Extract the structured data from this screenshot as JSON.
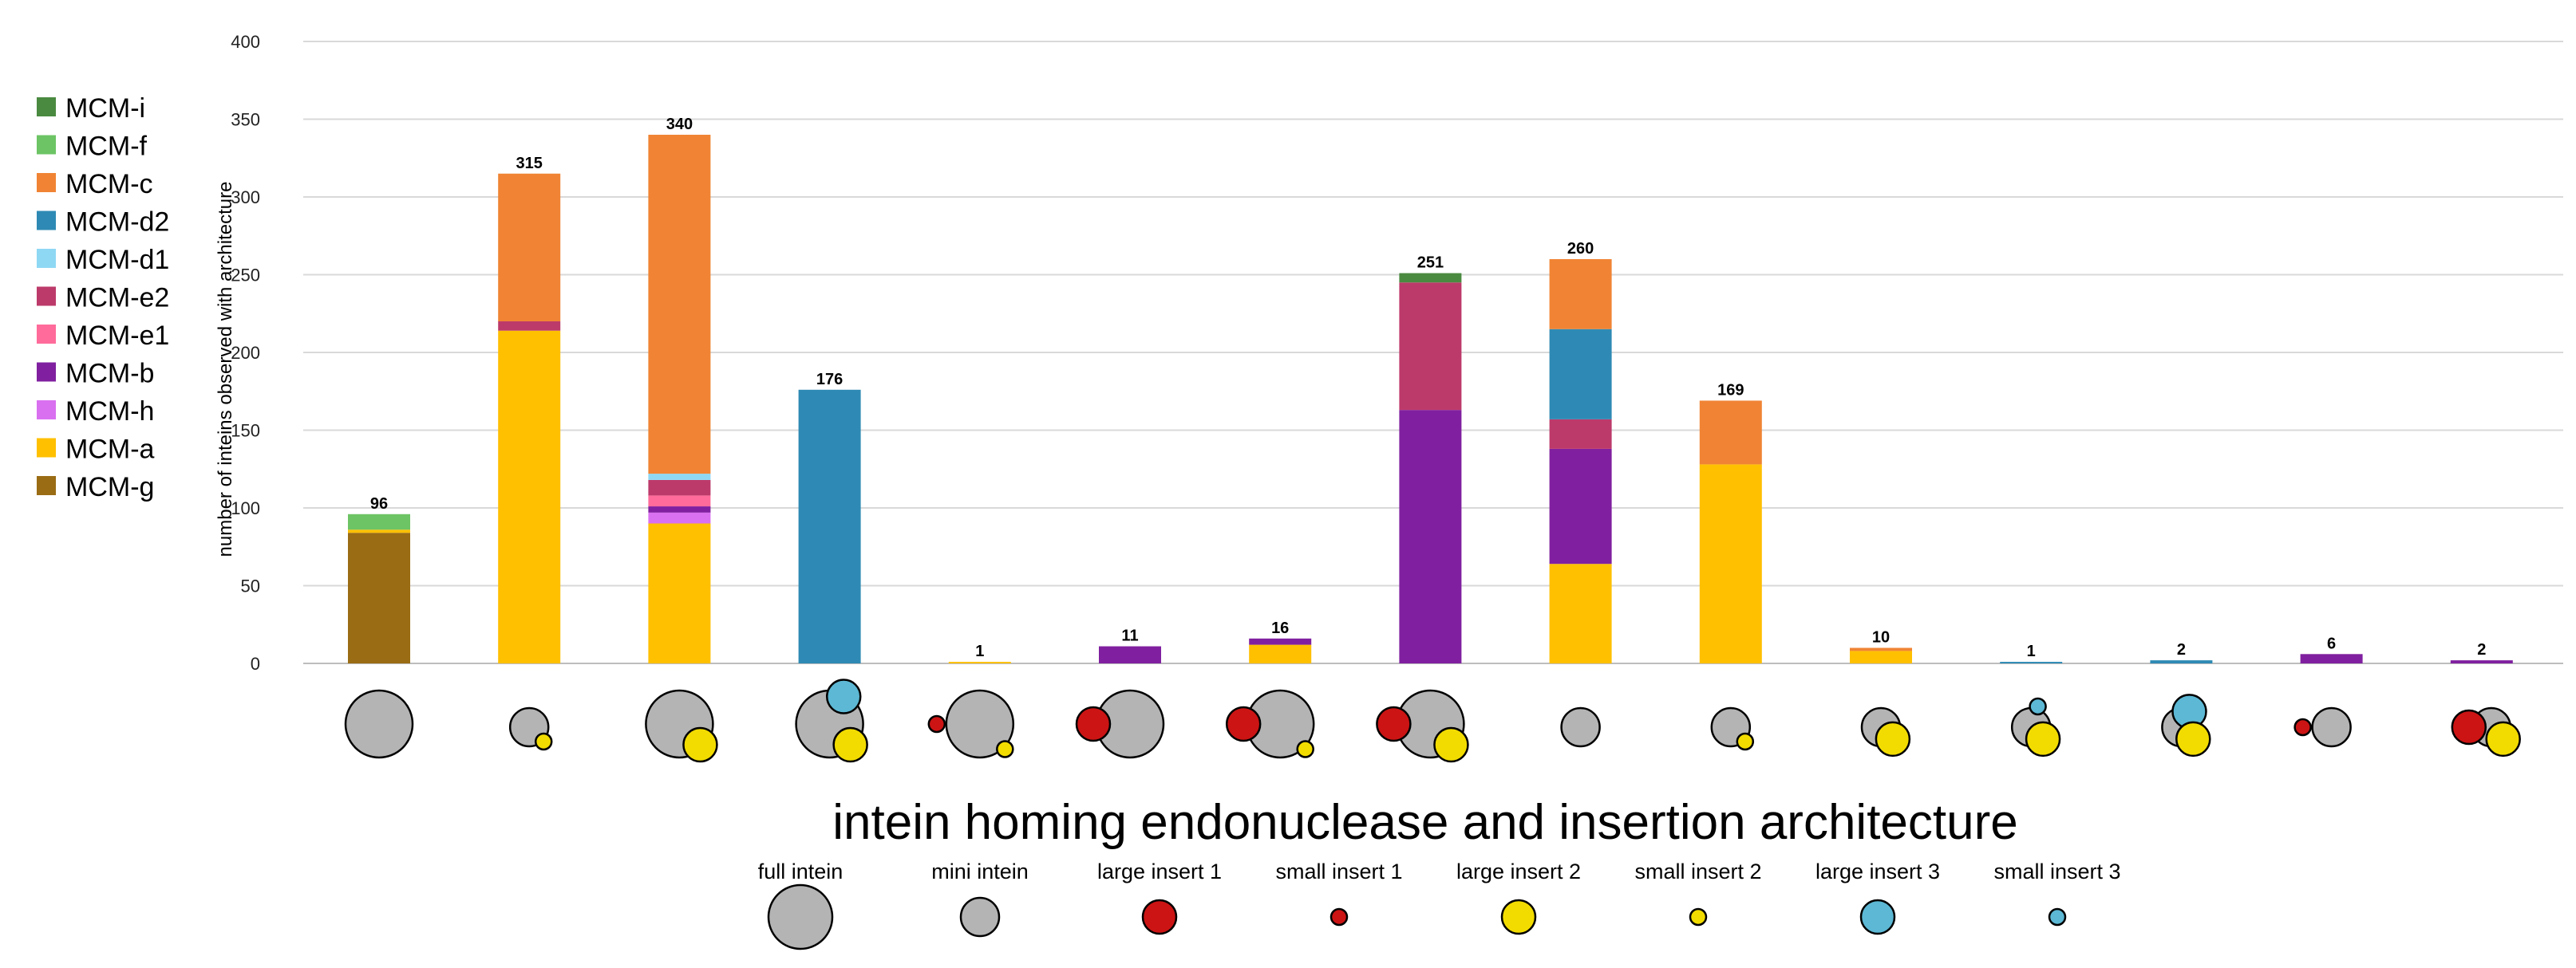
{
  "chart_data": {
    "type": "bar",
    "stacked": true,
    "ylabel": "number of inteins observed with architecture",
    "xlabel": "intein homing endonuclease and insertion architecture",
    "ylim": [
      0,
      400
    ],
    "yticks": [
      0,
      50,
      100,
      150,
      200,
      250,
      300,
      350,
      400
    ],
    "grid": true,
    "legend_position": "left",
    "categories": [
      "full intein",
      "mini intein + small insert 2",
      "full intein + large insert 2",
      "full intein + large insert 2 + large insert 3",
      "full intein + small insert 1 + small insert 2",
      "large insert 1 + full intein",
      "large insert 1 + full intein + small insert 2",
      "large insert 1 + full intein + large insert 2",
      "mini intein",
      "mini intein + small insert 2",
      "mini intein + large insert 2",
      "mini intein + small insert 3 + large insert 2",
      "mini intein + large insert 3 + large insert 2",
      "small insert 1 + mini intein",
      "large insert 1 + mini intein + large insert 2"
    ],
    "totals": [
      96,
      315,
      340,
      176,
      1,
      11,
      16,
      251,
      260,
      169,
      10,
      1,
      2,
      6,
      2
    ],
    "series": [
      {
        "name": "MCM-g",
        "color": "#9a6c14",
        "values": [
          84,
          0,
          0,
          0,
          0,
          0,
          0,
          0,
          0,
          0,
          0,
          0,
          0,
          0,
          0
        ]
      },
      {
        "name": "MCM-a",
        "color": "#ffc000",
        "values": [
          2,
          214,
          90,
          0,
          1,
          0,
          12,
          0,
          64,
          128,
          8,
          0,
          0,
          0,
          0
        ]
      },
      {
        "name": "MCM-h",
        "color": "#d970f0",
        "values": [
          0,
          0,
          7,
          0,
          0,
          0,
          0,
          0,
          0,
          0,
          0,
          0,
          0,
          0,
          0
        ]
      },
      {
        "name": "MCM-b",
        "color": "#8020a0",
        "values": [
          0,
          0,
          4,
          0,
          0,
          11,
          4,
          163,
          74,
          0,
          0,
          0,
          0,
          6,
          2
        ]
      },
      {
        "name": "MCM-e1",
        "color": "#ff6b9a",
        "values": [
          0,
          0,
          7,
          0,
          0,
          0,
          0,
          0,
          0,
          0,
          0,
          0,
          0,
          0,
          0
        ]
      },
      {
        "name": "MCM-e2",
        "color": "#bc3a6a",
        "values": [
          0,
          6,
          10,
          0,
          0,
          0,
          0,
          82,
          19,
          0,
          0,
          0,
          0,
          0,
          0
        ]
      },
      {
        "name": "MCM-d1",
        "color": "#8ed8f4",
        "values": [
          0,
          0,
          4,
          0,
          0,
          0,
          0,
          0,
          0,
          0,
          0,
          0,
          0,
          0,
          0
        ]
      },
      {
        "name": "MCM-d2",
        "color": "#2e8ab4",
        "values": [
          0,
          0,
          0,
          176,
          0,
          0,
          0,
          0,
          58,
          0,
          0,
          1,
          2,
          0,
          0
        ]
      },
      {
        "name": "MCM-c",
        "color": "#f08434",
        "values": [
          0,
          95,
          218,
          0,
          0,
          0,
          0,
          0,
          45,
          41,
          2,
          0,
          0,
          0,
          0
        ]
      },
      {
        "name": "MCM-f",
        "color": "#6cc464",
        "values": [
          10,
          0,
          0,
          0,
          0,
          0,
          0,
          0,
          0,
          0,
          0,
          0,
          0,
          0,
          0
        ]
      },
      {
        "name": "MCM-i",
        "color": "#4a8a40",
        "values": [
          0,
          0,
          0,
          0,
          0,
          0,
          0,
          6,
          0,
          0,
          0,
          0,
          0,
          0,
          0
        ]
      }
    ],
    "legend_order": [
      "MCM-i",
      "MCM-f",
      "MCM-c",
      "MCM-d2",
      "MCM-d1",
      "MCM-e2",
      "MCM-e1",
      "MCM-b",
      "MCM-h",
      "MCM-a",
      "MCM-g"
    ],
    "architecture_icons": [
      [
        "full"
      ],
      [
        "mini",
        "si2"
      ],
      [
        "full",
        "li2"
      ],
      [
        "full",
        "li2",
        "li3"
      ],
      [
        "si1",
        "full",
        "si2"
      ],
      [
        "li1",
        "full"
      ],
      [
        "li1",
        "full",
        "si2"
      ],
      [
        "li1",
        "full",
        "li2"
      ],
      [
        "mini"
      ],
      [
        "mini",
        "si2"
      ],
      [
        "mini",
        "li2"
      ],
      [
        "mini",
        "si3",
        "li2"
      ],
      [
        "mini",
        "li3",
        "li2"
      ],
      [
        "si1",
        "mini"
      ],
      [
        "li1",
        "mini",
        "li2"
      ]
    ],
    "architecture_key": [
      {
        "id": "full",
        "label": "full intein",
        "color": "#b4b4b4"
      },
      {
        "id": "mini",
        "label": "mini intein",
        "color": "#b4b4b4"
      },
      {
        "id": "li1",
        "label": "large insert 1",
        "color": "#cc1414"
      },
      {
        "id": "si1",
        "label": "small insert 1",
        "color": "#cc1414"
      },
      {
        "id": "li2",
        "label": "large insert 2",
        "color": "#f2dc00"
      },
      {
        "id": "si2",
        "label": "small insert 2",
        "color": "#f2dc00"
      },
      {
        "id": "li3",
        "label": "large insert 3",
        "color": "#5cb8d4"
      },
      {
        "id": "si3",
        "label": "small insert 3",
        "color": "#5cb8d4"
      }
    ]
  }
}
